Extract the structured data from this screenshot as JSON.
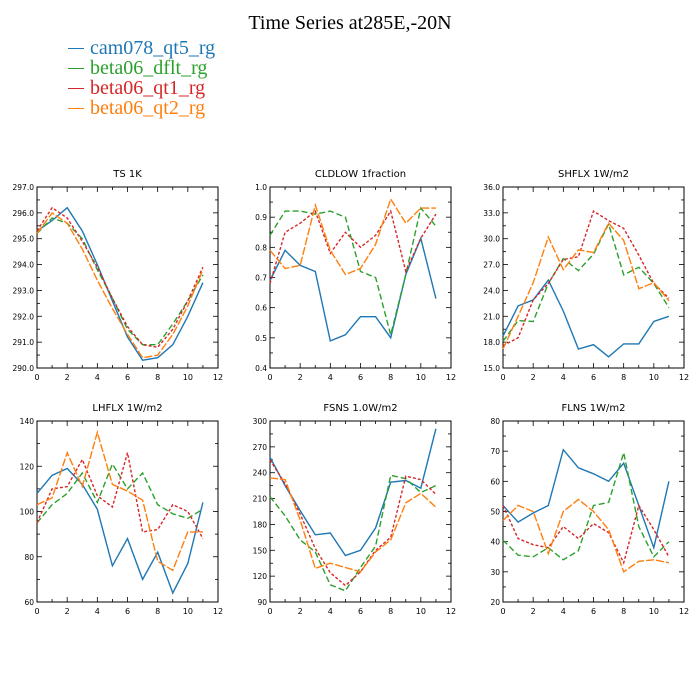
{
  "page": {
    "title": "Time Series at285E,-20N"
  },
  "colors": {
    "cam078_qt5_rg": "#1f77b4",
    "beta06_dflt_rg": "#2ca02c",
    "beta06_qt1_rg": "#d62728",
    "beta06_qt2_rg": "#ff7f0e"
  },
  "legend": [
    {
      "label": "cam078_qt5_rg",
      "color": "#1f77b4"
    },
    {
      "label": "beta06_dflt_rg",
      "color": "#2ca02c"
    },
    {
      "label": "beta06_qt1_rg",
      "color": "#d62728"
    },
    {
      "label": "beta06_qt2_rg",
      "color": "#ff7f0e"
    }
  ],
  "chart_data": [
    {
      "type": "line",
      "title": "TS   1K",
      "xlim": [
        0,
        12
      ],
      "xticks": [
        0,
        2,
        4,
        6,
        8,
        10,
        12
      ],
      "x": [
        0,
        1,
        2,
        3,
        4,
        5,
        6,
        7,
        8,
        9,
        10,
        11
      ],
      "ylim": [
        290,
        297
      ],
      "yticks": [
        "290.0",
        "291.0",
        "292.0",
        "293.0",
        "294.0",
        "295.0",
        "296.0",
        "297.0"
      ],
      "series": [
        {
          "name": "cam078_qt5_rg",
          "values": [
            295.3,
            295.7,
            296.2,
            295.3,
            294.0,
            292.6,
            291.2,
            290.3,
            290.4,
            290.9,
            292.0,
            293.3
          ]
        },
        {
          "name": "beta06_dflt_rg",
          "values": [
            295.2,
            295.8,
            295.6,
            295.0,
            293.8,
            292.7,
            291.5,
            290.9,
            290.9,
            291.7,
            292.6,
            293.6
          ]
        },
        {
          "name": "beta06_qt1_rg",
          "values": [
            295.3,
            296.2,
            295.8,
            294.9,
            293.9,
            292.7,
            291.6,
            290.9,
            290.8,
            291.5,
            292.6,
            293.9
          ]
        },
        {
          "name": "beta06_qt2_rg",
          "values": [
            295.2,
            296.0,
            295.6,
            294.6,
            293.4,
            292.3,
            291.3,
            290.4,
            290.5,
            291.3,
            292.4,
            293.8
          ]
        }
      ]
    },
    {
      "type": "line",
      "title": "CLDLOW   1fraction",
      "xlim": [
        0,
        12
      ],
      "xticks": [
        0,
        2,
        4,
        6,
        8,
        10,
        12
      ],
      "x": [
        0,
        1,
        2,
        3,
        4,
        5,
        6,
        7,
        8,
        9,
        10,
        11
      ],
      "ylim": [
        0.4,
        1.0
      ],
      "yticks": [
        "0.4",
        "0.5",
        "0.6",
        "0.7",
        "0.8",
        "0.9",
        "1.0"
      ],
      "series": [
        {
          "name": "cam078_qt5_rg",
          "values": [
            0.69,
            0.79,
            0.74,
            0.72,
            0.49,
            0.51,
            0.57,
            0.57,
            0.5,
            0.71,
            0.83,
            0.63
          ]
        },
        {
          "name": "beta06_dflt_rg",
          "values": [
            0.84,
            0.92,
            0.92,
            0.91,
            0.92,
            0.9,
            0.72,
            0.7,
            0.51,
            0.71,
            0.93,
            0.87
          ]
        },
        {
          "name": "beta06_qt1_rg",
          "values": [
            0.68,
            0.85,
            0.88,
            0.92,
            0.78,
            0.85,
            0.8,
            0.84,
            0.92,
            0.72,
            0.83,
            0.91
          ]
        },
        {
          "name": "beta06_qt2_rg",
          "values": [
            0.79,
            0.73,
            0.74,
            0.94,
            0.79,
            0.71,
            0.73,
            0.81,
            0.96,
            0.88,
            0.93,
            0.93
          ]
        }
      ]
    },
    {
      "type": "line",
      "title": "SHFLX   1W/m2",
      "xlim": [
        0,
        12
      ],
      "xticks": [
        0,
        2,
        4,
        6,
        8,
        10,
        12
      ],
      "x": [
        0,
        1,
        2,
        3,
        4,
        5,
        6,
        7,
        8,
        9,
        10,
        11
      ],
      "ylim": [
        15,
        36
      ],
      "yticks": [
        "15.0",
        "18.0",
        "21.0",
        "24.0",
        "27.0",
        "30.0",
        "33.0",
        "36.0"
      ],
      "series": [
        {
          "name": "cam078_qt5_rg",
          "values": [
            18.7,
            22.2,
            22.9,
            25.2,
            21.6,
            17.2,
            17.7,
            16.3,
            17.8,
            17.8,
            20.4,
            21.0
          ]
        },
        {
          "name": "beta06_dflt_rg",
          "values": [
            18.1,
            20.5,
            20.4,
            24.8,
            27.7,
            26.3,
            28.2,
            31.7,
            25.8,
            26.7,
            24.8,
            22.0
          ]
        },
        {
          "name": "beta06_qt1_rg",
          "values": [
            17.6,
            18.5,
            22.9,
            24.8,
            27.6,
            27.9,
            33.2,
            32.1,
            31.2,
            28.1,
            24.8,
            23.1
          ]
        },
        {
          "name": "beta06_qt2_rg",
          "values": [
            17.2,
            21.0,
            24.9,
            30.2,
            26.4,
            28.7,
            28.4,
            31.8,
            29.8,
            24.2,
            24.9,
            22.8
          ]
        }
      ]
    },
    {
      "type": "line",
      "title": "LHFLX   1W/m2",
      "xlim": [
        0,
        12
      ],
      "xticks": [
        0,
        2,
        4,
        6,
        8,
        10,
        12
      ],
      "x": [
        0,
        1,
        2,
        3,
        4,
        5,
        6,
        7,
        8,
        9,
        10,
        11
      ],
      "ylim": [
        60,
        140
      ],
      "yticks": [
        "60",
        "80",
        "100",
        "120",
        "140"
      ],
      "series": [
        {
          "name": "cam078_qt5_rg",
          "values": [
            108,
            116,
            119,
            112,
            101,
            76,
            88,
            70,
            82,
            64,
            77,
            104
          ]
        },
        {
          "name": "beta06_dflt_rg",
          "values": [
            95,
            103,
            108,
            117,
            104,
            121,
            110,
            117,
            103,
            99,
            97,
            101
          ]
        },
        {
          "name": "beta06_qt1_rg",
          "values": [
            95,
            110,
            111,
            123,
            107,
            102,
            126,
            91,
            92,
            103,
            100,
            88
          ]
        },
        {
          "name": "beta06_qt2_rg",
          "values": [
            103,
            106,
            126,
            111,
            135,
            112,
            109,
            105,
            78,
            74,
            91,
            91
          ]
        }
      ]
    },
    {
      "type": "line",
      "title": "FSNS   1.0W/m2",
      "xlim": [
        0,
        12
      ],
      "xticks": [
        0,
        2,
        4,
        6,
        8,
        10,
        12
      ],
      "x": [
        0,
        1,
        2,
        3,
        4,
        5,
        6,
        7,
        8,
        9,
        10,
        11
      ],
      "ylim": [
        90,
        300
      ],
      "yticks": [
        "90",
        "120",
        "150",
        "180",
        "210",
        "240",
        "270",
        "300"
      ],
      "series": [
        {
          "name": "cam078_qt5_rg",
          "values": [
            258,
            225,
            196,
            168,
            170,
            144,
            150,
            176,
            229,
            231,
            222,
            291
          ]
        },
        {
          "name": "beta06_dflt_rg",
          "values": [
            212,
            190,
            162,
            148,
            110,
            103,
            130,
            155,
            237,
            233,
            217,
            225
          ]
        },
        {
          "name": "beta06_qt1_rg",
          "values": [
            255,
            227,
            192,
            152,
            124,
            109,
            125,
            150,
            165,
            236,
            232,
            215
          ]
        },
        {
          "name": "beta06_qt2_rg",
          "values": [
            234,
            232,
            185,
            129,
            135,
            130,
            125,
            148,
            162,
            205,
            216,
            200
          ]
        }
      ]
    },
    {
      "type": "line",
      "title": "FLNS   1W/m2",
      "xlim": [
        0,
        12
      ],
      "xticks": [
        0,
        2,
        4,
        6,
        8,
        10,
        12
      ],
      "x": [
        0,
        1,
        2,
        3,
        4,
        5,
        6,
        7,
        8,
        9,
        10,
        11
      ],
      "ylim": [
        20,
        80
      ],
      "yticks": [
        "20",
        "30",
        "40",
        "50",
        "60",
        "70",
        "80"
      ],
      "series": [
        {
          "name": "cam078_qt5_rg",
          "values": [
            52,
            46.5,
            49.5,
            52,
            70.5,
            64.5,
            62.5,
            60,
            66,
            52,
            38,
            60
          ]
        },
        {
          "name": "beta06_dflt_rg",
          "values": [
            40.5,
            35.5,
            35,
            38,
            34,
            37,
            52,
            53,
            69.5,
            45,
            35,
            40
          ]
        },
        {
          "name": "beta06_qt1_rg",
          "values": [
            52,
            41,
            39,
            38,
            45,
            41,
            46,
            43,
            33,
            52,
            44,
            35
          ]
        },
        {
          "name": "beta06_qt2_rg",
          "values": [
            47,
            52,
            50,
            36,
            50,
            54,
            50,
            44,
            30,
            33.5,
            34,
            33
          ]
        }
      ]
    }
  ]
}
